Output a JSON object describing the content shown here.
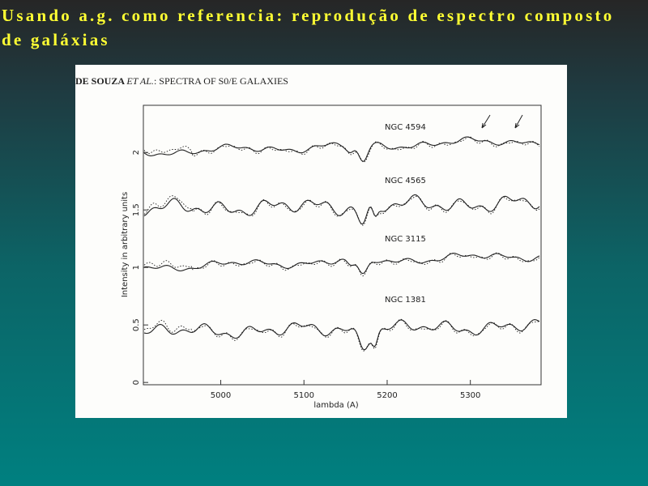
{
  "slide": {
    "title_lines": [
      "Usando a.g. como referencia: reprodução de espectro composto",
      "de galáxias"
    ],
    "figure": {
      "header": {
        "author": "DE SOUZA ",
        "etal": "ET AL.",
        "rest": ": SPECTRA OF S0/E GALAXIES"
      },
      "xlabel": "lambda (A)",
      "ylabel": "Intensity in arbitrary units",
      "xlim": [
        4907,
        5385
      ],
      "ylim": [
        -0.02,
        2.41
      ],
      "xticks": [
        5000,
        5100,
        5200,
        5300
      ],
      "yticks": [
        0,
        0.5,
        1,
        1.5,
        2
      ],
      "spectra": [
        "NGC 4594",
        "NGC 4565",
        "NGC 3115",
        "NGC 1381"
      ]
    }
  }
}
